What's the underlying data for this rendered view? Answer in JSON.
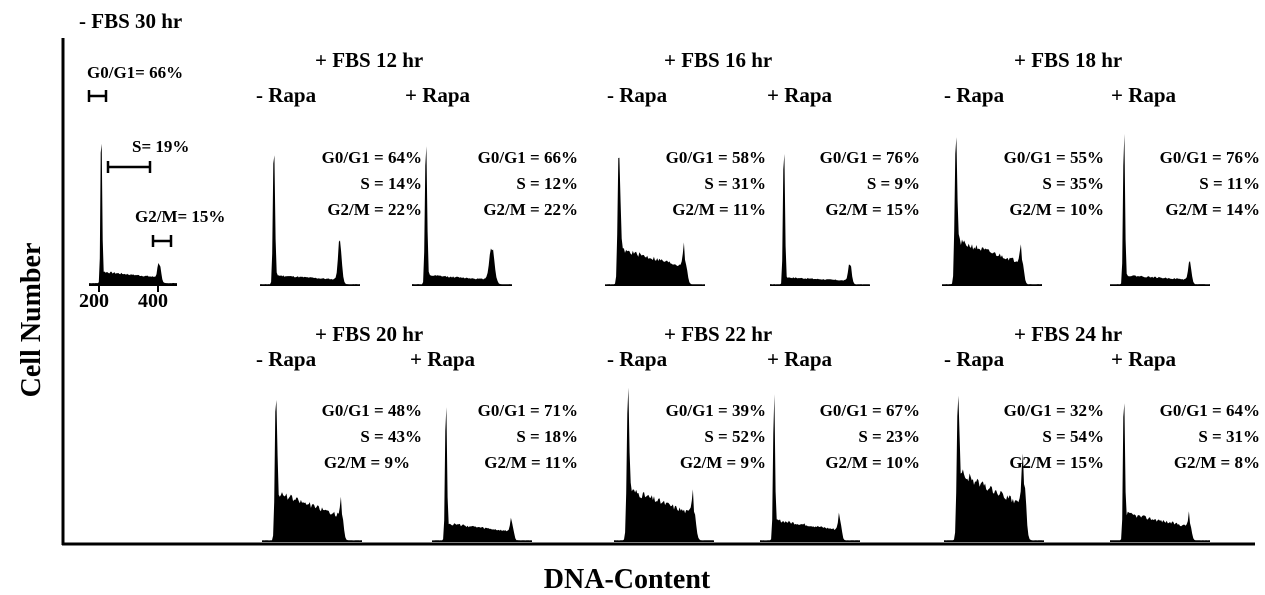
{
  "chart_data": {
    "type": "histogram",
    "xlabel": "DNA-Content",
    "ylabel": "Cell Number",
    "x_ticks": [
      "200",
      "400"
    ],
    "control": {
      "title": "- FBS 30 hr",
      "g0g1_label": "G0/G1= 66%",
      "s_label": "S= 19%",
      "g2m_label": "G2/M= 15%",
      "profile": {
        "g1": 0.88,
        "s": 0.06,
        "g2": 0.1,
        "g1_sigma": 0.009,
        "g2_sigma": 0.018
      }
    },
    "groups": [
      {
        "condition": "+ FBS 12 hr",
        "panels": [
          {
            "treatment": "- Rapa",
            "g0g1": "G0/G1 = 64%",
            "s": "S = 14%",
            "g2m": "G2/M  = 22%",
            "profile": {
              "g1": 0.78,
              "s": 0.05,
              "g2": 0.24,
              "g1_sigma": 0.01,
              "g2_sigma": 0.018
            }
          },
          {
            "treatment": "+ Rapa",
            "g0g1": "G0/G1 = 66%",
            "s": "S = 12%",
            "g2m": "G2/M  = 22%",
            "profile": {
              "g1": 0.82,
              "s": 0.05,
              "g2": 0.2,
              "g1_sigma": 0.01,
              "g2_sigma": 0.025
            }
          }
        ]
      },
      {
        "condition": "+ FBS 16 hr",
        "panels": [
          {
            "treatment": "- Rapa",
            "g0g1": "G0/G1 = 58%",
            "s": "S = 31%",
            "g2m": "G2/M  = 11%",
            "profile": {
              "g1": 0.8,
              "s": 0.2,
              "g2": 0.14,
              "g1_sigma": 0.012,
              "g2_sigma": 0.02
            }
          },
          {
            "treatment": "+ Rapa",
            "g0g1": "G0/G1 = 76%",
            "s": "S = 9%",
            "g2m": "G2/M  = 15%",
            "profile": {
              "g1": 0.88,
              "s": 0.04,
              "g2": 0.12,
              "g1_sigma": 0.009,
              "g2_sigma": 0.016
            }
          }
        ]
      },
      {
        "condition": "+ FBS 18 hr",
        "panels": [
          {
            "treatment": "- Rapa",
            "g0g1": "G0/G1 = 55%",
            "s": "S = 35%",
            "g2m": "G2/M  = 10%",
            "profile": {
              "g1": 0.82,
              "s": 0.24,
              "g2": 0.14,
              "g1_sigma": 0.012,
              "g2_sigma": 0.018
            }
          },
          {
            "treatment": "+ Rapa",
            "g0g1": "G0/G1 = 76%",
            "s": "S = 11%",
            "g2m": "G2/M  = 14%",
            "profile": {
              "g1": 0.9,
              "s": 0.05,
              "g2": 0.12,
              "g1_sigma": 0.009,
              "g2_sigma": 0.016
            }
          }
        ]
      },
      {
        "condition": "+ FBS 20 hr",
        "panels": [
          {
            "treatment": "- Rapa",
            "g0g1": "G0/G1 = 48%",
            "s": "S = 43%",
            "g2m": "G2/M = 9%",
            "profile": {
              "g1": 0.9,
              "s": 0.28,
              "g2": 0.16,
              "g1_sigma": 0.011,
              "g2_sigma": 0.016
            }
          },
          {
            "treatment": "+ Rapa",
            "g0g1": "G0/G1 = 71%",
            "s": "S = 18%",
            "g2m": "G2/M  = 11%",
            "profile": {
              "g1": 0.9,
              "s": 0.1,
              "g2": 0.1,
              "g1_sigma": 0.009,
              "g2_sigma": 0.016
            }
          }
        ]
      },
      {
        "condition": "+ FBS 22 hr",
        "panels": [
          {
            "treatment": "- Rapa",
            "g0g1": "G0/G1 = 39%",
            "s": "S = 52%",
            "g2m": "G2/M  = 9%",
            "profile": {
              "g1": 0.88,
              "s": 0.3,
              "g2": 0.18,
              "g1_sigma": 0.012,
              "g2_sigma": 0.02
            }
          },
          {
            "treatment": "+ Rapa",
            "g0g1": "G0/G1 = 67%",
            "s": "S = 23%",
            "g2m": "G2/M  = 10%",
            "profile": {
              "g1": 0.9,
              "s": 0.12,
              "g2": 0.12,
              "g1_sigma": 0.009,
              "g2_sigma": 0.016
            }
          }
        ]
      },
      {
        "condition": "+ FBS 24 hr",
        "panels": [
          {
            "treatment": "- Rapa",
            "g0g1": "G0/G1 = 32%",
            "s": "S = 54%",
            "g2m": "G2/M  = 15%",
            "profile": {
              "g1": 0.88,
              "s": 0.4,
              "g2": 0.36,
              "g1_sigma": 0.012,
              "g2_sigma": 0.02
            }
          },
          {
            "treatment": "+ Rapa",
            "g0g1": "G0/G1 = 64%",
            "s": "S = 31%",
            "g2m": "G2/M  = 8%",
            "profile": {
              "g1": 0.9,
              "s": 0.16,
              "g2": 0.1,
              "g1_sigma": 0.009,
              "g2_sigma": 0.016
            }
          }
        ]
      }
    ]
  }
}
